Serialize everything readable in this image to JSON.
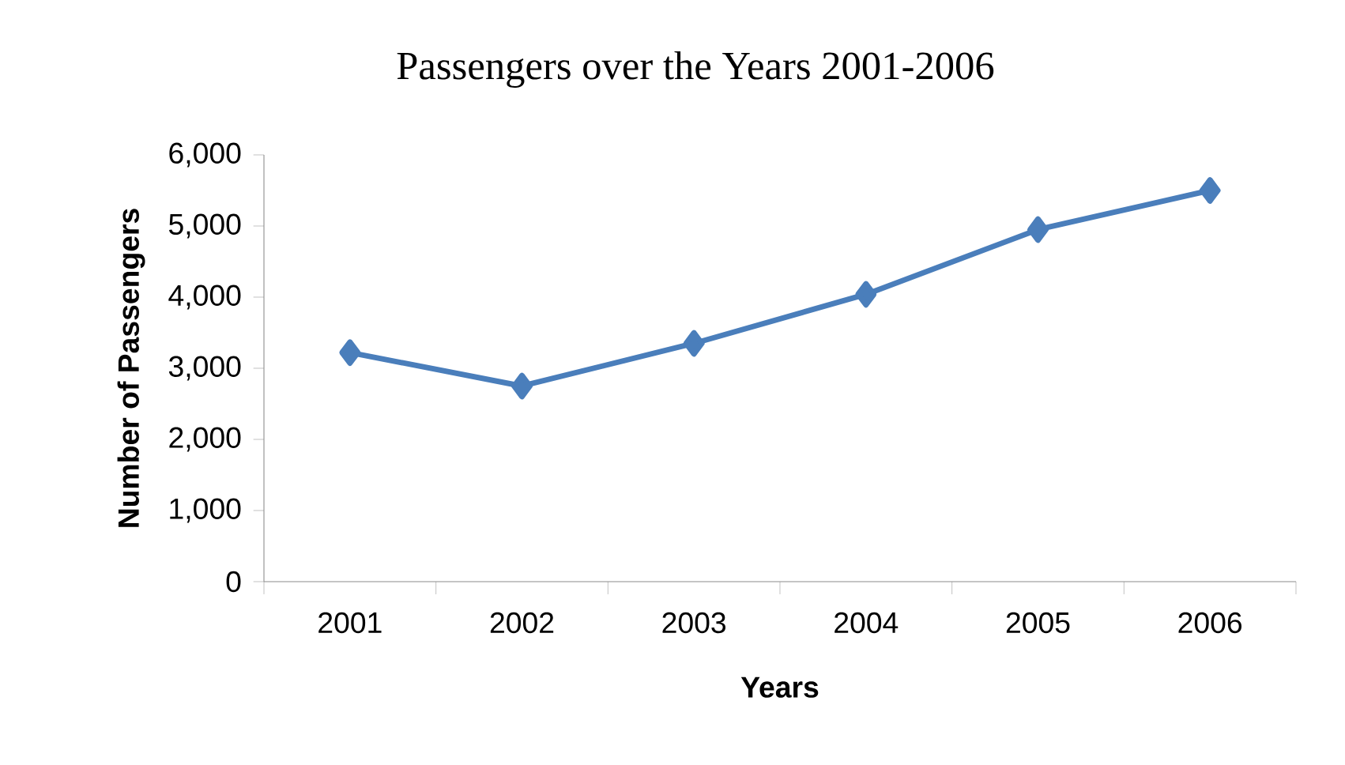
{
  "chart_data": {
    "type": "line",
    "title": "Passengers over the Years 2001-2006",
    "xlabel": "Years",
    "ylabel": "Number of Passengers",
    "categories": [
      "2001",
      "2002",
      "2003",
      "2004",
      "2005",
      "2006"
    ],
    "series": [
      {
        "color": "#4a7ebb",
        "values": [
          3220,
          2750,
          3350,
          4040,
          4950,
          5500
        ]
      }
    ],
    "ylim": [
      0,
      6000
    ],
    "yticks": [
      {
        "value": 0,
        "label": "0"
      },
      {
        "value": 1000,
        "label": "1,000"
      },
      {
        "value": 2000,
        "label": "2,000"
      },
      {
        "value": 3000,
        "label": "3,000"
      },
      {
        "value": 4000,
        "label": "4,000"
      },
      {
        "value": 5000,
        "label": "5,000"
      },
      {
        "value": 6000,
        "label": "6,000"
      }
    ],
    "marker": "diamond",
    "line_style": "solid",
    "grid": false
  }
}
